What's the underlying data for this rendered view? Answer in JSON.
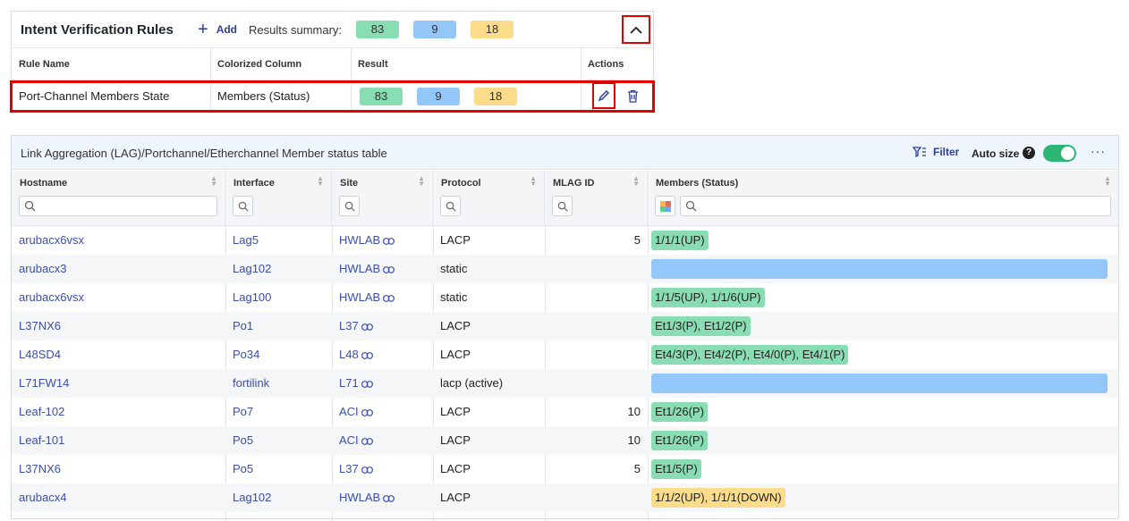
{
  "rules_panel": {
    "title": "Intent Verification Rules",
    "add_label": "Add",
    "summary_label": "Results summary:",
    "summary": {
      "green": "83",
      "blue": "9",
      "yellow": "18"
    },
    "columns": [
      "Rule Name",
      "Colorized Column",
      "Result",
      "Actions"
    ],
    "row": {
      "rule_name": "Port-Channel Members State",
      "colorized_column": "Members (Status)",
      "result": {
        "green": "83",
        "blue": "9",
        "yellow": "18"
      }
    },
    "icons": {
      "collapse": "chevron-up-icon",
      "edit": "pencil-icon",
      "delete": "trash-icon",
      "add": "plus-icon"
    }
  },
  "table": {
    "title": "Link Aggregation (LAG)/Portchannel/Etherchannel Member status table",
    "filter_label": "Filter",
    "autosize_label": "Auto size",
    "autosize_on": true,
    "more_label": "···",
    "help_label": "?",
    "columns": [
      "Hostname",
      "Interface",
      "Site",
      "Protocol",
      "MLAG ID",
      "Members (Status)"
    ],
    "rows": [
      {
        "hostname": "arubacx6vsx",
        "interface": "Lag5",
        "site": "HWLAB",
        "protocol": "LACP",
        "mlag": "5",
        "members": "1/1/1(UP)",
        "status": "green"
      },
      {
        "hostname": "arubacx3",
        "interface": "Lag102",
        "site": "HWLAB",
        "protocol": "static",
        "mlag": "",
        "members": "",
        "status": "blue"
      },
      {
        "hostname": "arubacx6vsx",
        "interface": "Lag100",
        "site": "HWLAB",
        "protocol": "static",
        "mlag": "",
        "members": "1/1/5(UP), 1/1/6(UP)",
        "status": "green"
      },
      {
        "hostname": "L37NX6",
        "interface": "Po1",
        "site": "L37",
        "protocol": "LACP",
        "mlag": "",
        "members": "Et1/3(P), Et1/2(P)",
        "status": "green"
      },
      {
        "hostname": "L48SD4",
        "interface": "Po34",
        "site": "L48",
        "protocol": "LACP",
        "mlag": "",
        "members": "Et4/3(P), Et4/2(P), Et4/0(P), Et4/1(P)",
        "status": "green"
      },
      {
        "hostname": "L71FW14",
        "interface": "fortilink",
        "site": "L71",
        "protocol": "lacp (active)",
        "mlag": "",
        "members": "",
        "status": "blue"
      },
      {
        "hostname": "Leaf-102",
        "interface": "Po7",
        "site": "ACI",
        "protocol": "LACP",
        "mlag": "10",
        "members": "Et1/26(P)",
        "status": "green"
      },
      {
        "hostname": "Leaf-101",
        "interface": "Po5",
        "site": "ACI",
        "protocol": "LACP",
        "mlag": "10",
        "members": "Et1/26(P)",
        "status": "green"
      },
      {
        "hostname": "L37NX6",
        "interface": "Po5",
        "site": "L37",
        "protocol": "LACP",
        "mlag": "5",
        "members": "Et1/5(P)",
        "status": "green"
      },
      {
        "hostname": "arubacx4",
        "interface": "Lag102",
        "site": "HWLAB",
        "protocol": "LACP",
        "mlag": "",
        "members": "1/1/2(UP), 1/1/1(DOWN)",
        "status": "yellow"
      }
    ]
  },
  "colors": {
    "green": "#88ddb3",
    "blue": "#93c7f7",
    "yellow": "#fbdc8a",
    "link": "#3b4fa8",
    "highlight": "#e00000"
  }
}
